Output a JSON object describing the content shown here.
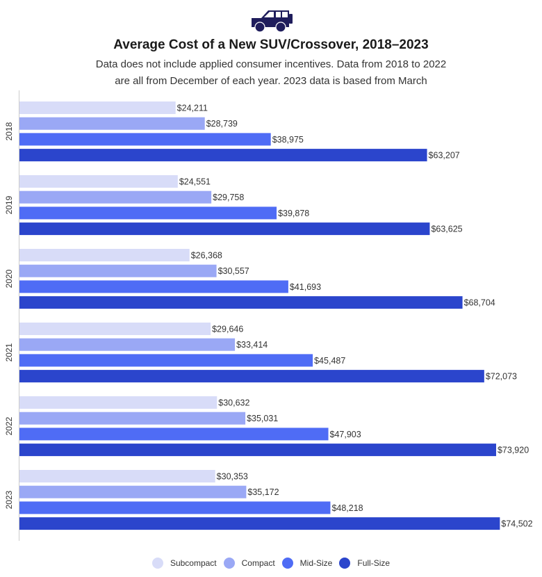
{
  "header": {
    "icon": "suv-icon",
    "title": "Average Cost of a New SUV/Crossover, 2018–2023",
    "subtitle_line1": "Data does not include applied consumer incentives. Data from 2018 to 2022",
    "subtitle_line2": "are all from December of each year. 2023 data is based from March"
  },
  "chart_data": {
    "type": "bar",
    "orientation": "horizontal",
    "title": "Average Cost of a New SUV/Crossover, 2018–2023",
    "categories": [
      "2018",
      "2019",
      "2020",
      "2021",
      "2022",
      "2023"
    ],
    "series": [
      {
        "name": "Subcompact",
        "color": "#d8dcf8",
        "values": [
          24211,
          24551,
          26368,
          29646,
          30632,
          30353
        ],
        "labels": [
          "$24,211",
          "$24,551",
          "$26,368",
          "$29,646",
          "$30,632",
          "$30,353"
        ]
      },
      {
        "name": "Compact",
        "color": "#9aa8f5",
        "values": [
          28739,
          29758,
          30557,
          33414,
          35031,
          35172
        ],
        "labels": [
          "$28,739",
          "$29,758",
          "$30,557",
          "$33,414",
          "$35,031",
          "$35,172"
        ]
      },
      {
        "name": "Mid-Size",
        "color": "#4f6cf5",
        "values": [
          38975,
          39878,
          41693,
          45487,
          47903,
          48218
        ],
        "labels": [
          "$38,975",
          "$39,878",
          "$41,693",
          "$45,487",
          "$47,903",
          "$48,218"
        ]
      },
      {
        "name": "Full-Size",
        "color": "#2b45cc",
        "values": [
          63207,
          63625,
          68704,
          72073,
          73920,
          74502
        ],
        "labels": [
          "$63,207",
          "$63,625",
          "$68,704",
          "$72,073",
          "$73,920",
          "$74,502"
        ]
      }
    ],
    "xlim": [
      0,
      80000
    ],
    "grid": false,
    "legend": "bottom"
  }
}
